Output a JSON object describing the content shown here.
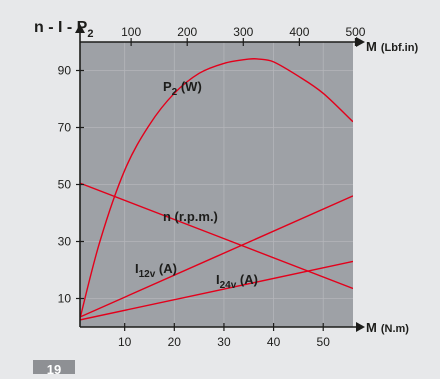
{
  "chart_data": {
    "type": "line",
    "title_parts": [
      "n - I - P",
      "2"
    ],
    "x_axis": {
      "label": "M",
      "unit": "(N.m)",
      "range": [
        1,
        56
      ],
      "ticks": [
        "10",
        "20",
        "30",
        "40",
        "50"
      ],
      "tick_values": [
        10,
        20,
        30,
        40,
        50
      ]
    },
    "x2_axis": {
      "label": "M",
      "unit": "(Lbf.in)",
      "range": [
        8.85,
        495.6
      ],
      "ticks": [
        "100",
        "200",
        "300",
        "400",
        "500"
      ],
      "tick_values": [
        100,
        200,
        300,
        400,
        500
      ]
    },
    "y_axis": {
      "range": [
        0,
        100
      ],
      "ticks": [
        "10",
        "30",
        "50",
        "70",
        "90"
      ],
      "tick_values": [
        10,
        30,
        50,
        70,
        90
      ]
    },
    "series": [
      {
        "label_parts": [
          "P",
          "2",
          " (W)"
        ],
        "x": [
          1,
          5,
          10,
          15,
          20,
          25,
          30,
          35,
          37,
          40,
          45,
          50,
          56
        ],
        "y": [
          3,
          30,
          55,
          71,
          82,
          89,
          92.5,
          94,
          94,
          93,
          88,
          82,
          72
        ]
      },
      {
        "label_parts": [
          "n (r.p.m.)"
        ],
        "x": [
          1,
          56
        ],
        "y": [
          50.5,
          13.5
        ]
      },
      {
        "label_parts": [
          "I",
          "12v",
          " (A)"
        ],
        "x": [
          1,
          56
        ],
        "y": [
          3.5,
          46
        ]
      },
      {
        "label_parts": [
          "I",
          "24v",
          " (A)"
        ],
        "x": [
          1,
          56
        ],
        "y": [
          2.5,
          23
        ]
      }
    ],
    "colors": {
      "plot_background": "#9ea1a6",
      "curves": "#e3001b",
      "axes": "#1d1d1b",
      "page_background": "#e7e8ea"
    },
    "grid": true
  },
  "page_number": "19"
}
